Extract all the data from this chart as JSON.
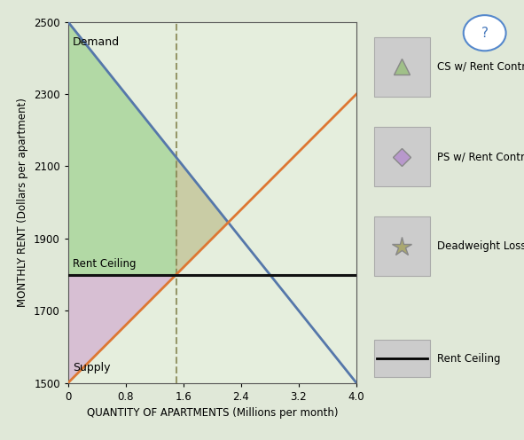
{
  "ylabel": "MONTHLY RENT (Dollars per apartment)",
  "xlabel": "QUANTITY OF APARTMENTS (Millions per month)",
  "ylim": [
    1500,
    2500
  ],
  "xlim": [
    0,
    4.0
  ],
  "yticks": [
    1500,
    1700,
    1900,
    2100,
    2300,
    2500
  ],
  "xticks": [
    0,
    0.8,
    1.6,
    2.4,
    3.2,
    4.0
  ],
  "xtick_labels": [
    "0",
    "0.8",
    "1.6",
    "2.4",
    "3.2",
    "4.0"
  ],
  "rent_ceiling": 1800,
  "demand_y0": 2500,
  "demand_slope": -250,
  "supply_y0": 1500,
  "supply_slope": 200,
  "demand_color": "#5577aa",
  "supply_color": "#dd7733",
  "ceiling_color": "#111111",
  "cs_fill_color": "#90cc80",
  "ps_fill_color": "#cc99cc",
  "dwl_fill_color": "#bbbb88",
  "dashed_color": "#888855",
  "plot_bg": "#e5eedd",
  "fig_bg": "#e0e8d8",
  "demand_label": "Demand",
  "supply_label": "Supply",
  "rent_label": "Rent Ceiling",
  "legend_labels": [
    "CS w/ Rent Control",
    "PS w/ Rent Control",
    "Deadweight Loss",
    "Rent Ceiling"
  ],
  "cs_alpha": 0.6,
  "ps_alpha": 0.55,
  "dwl_alpha": 0.65,
  "clip_xmax": 4.0,
  "clip_ymin": 1500,
  "clip_ymax": 2500
}
